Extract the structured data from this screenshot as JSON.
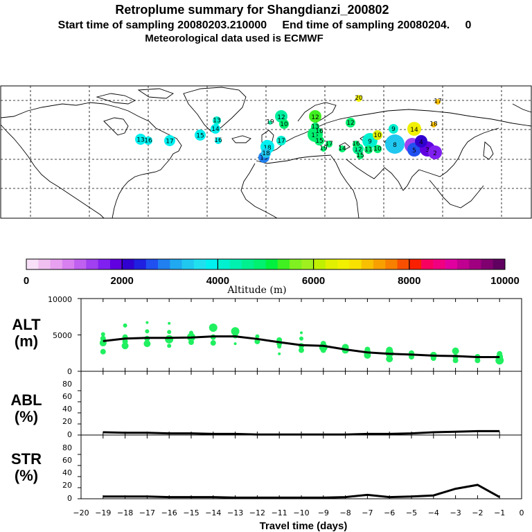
{
  "title": {
    "line1": "Retroplume summary for Shangdianzi_200802",
    "line2": "Start time of sampling 20080203.210000     End time of sampling 20080204.     0",
    "line3": "Meteorological data used is ECMWF"
  },
  "colorbar": {
    "colors": [
      "#f8e0f8",
      "#f0c0f0",
      "#e8a0f0",
      "#d880f0",
      "#c060f0",
      "#a040f0",
      "#8020f0",
      "#6000e0",
      "#3000d0",
      "#2020e0",
      "#2050f0",
      "#2080f0",
      "#20a8f0",
      "#20c8f0",
      "#20e0f0",
      "#00f0f0",
      "#00f0d0",
      "#00f0b0",
      "#00f090",
      "#00f070",
      "#00f040",
      "#40f020",
      "#80f020",
      "#a0f020",
      "#c0f000",
      "#e0f000",
      "#f0f000",
      "#f8e000",
      "#f8c000",
      "#f8a000",
      "#f88000",
      "#f85000",
      "#f82000",
      "#f80060",
      "#f00080",
      "#e000a0",
      "#c00090",
      "#a00080",
      "#800070",
      "#600060"
    ],
    "tick_labels": [
      "0",
      "2000",
      "4000",
      "6000",
      "8000",
      "10000"
    ],
    "axis_title": "Altitude (m)"
  },
  "map_labels": [
    {
      "day": "13",
      "color": "#00f0f0"
    },
    {
      "day": "16",
      "color": "#00f0f0"
    },
    {
      "day": "17",
      "color": "#00f0f0"
    },
    {
      "day": "15",
      "color": "#00f0f0"
    },
    {
      "day": "14",
      "color": "#00f0f0"
    },
    {
      "day": "16",
      "color": "#00f0f0"
    },
    {
      "day": "13",
      "color": "#00f0d0"
    },
    {
      "day": "12",
      "color": "#00f0a0"
    },
    {
      "day": "19",
      "color": "#00f0a0"
    },
    {
      "day": "10",
      "color": "#00f070"
    },
    {
      "day": "11",
      "color": "#00f070"
    },
    {
      "day": "12",
      "color": "#40f020"
    },
    {
      "day": "13",
      "color": "#00f070"
    },
    {
      "day": "15",
      "color": "#00f070"
    },
    {
      "day": "17",
      "color": "#00f070"
    },
    {
      "day": "19",
      "color": "#00f070"
    },
    {
      "day": "18",
      "color": "#00f0f0"
    },
    {
      "day": "17",
      "color": "#00f0d0"
    },
    {
      "day": "19",
      "color": "#2080f0"
    },
    {
      "day": "18",
      "color": "#20c8f0"
    },
    {
      "day": "16",
      "color": "#00f070"
    },
    {
      "day": "9",
      "color": "#00f0d0"
    },
    {
      "day": "12",
      "color": "#00f090"
    },
    {
      "day": "11",
      "color": "#00f070"
    },
    {
      "day": "10",
      "color": "#00f070"
    },
    {
      "day": "8",
      "color": "#20c8f0"
    },
    {
      "day": "6",
      "color": "#a040f0"
    },
    {
      "day": "5",
      "color": "#2050f0"
    },
    {
      "day": "3",
      "color": "#6000e0"
    },
    {
      "day": "2",
      "color": "#8020f0"
    },
    {
      "day": "4",
      "color": "#3000d0"
    },
    {
      "day": "14",
      "color": "#f0f000"
    },
    {
      "day": "9",
      "color": "#00f0d0"
    },
    {
      "day": "20",
      "color": "#f0f000"
    },
    {
      "day": "17",
      "color": "#f8c000"
    },
    {
      "day": "18",
      "color": "#f8c000"
    },
    {
      "day": "10",
      "color": "#e0f000"
    },
    {
      "day": "12",
      "color": "#00f070"
    },
    {
      "day": "14",
      "color": "#00f070"
    },
    {
      "day": "15",
      "color": "#00f070"
    },
    {
      "day": "16",
      "color": "#00f070"
    }
  ],
  "panels": {
    "alt_label": [
      "ALT",
      "(m)"
    ],
    "abl_label": [
      "ABL",
      "(%)"
    ],
    "str_label": [
      "STR",
      "(%)"
    ],
    "alt_ticks": [
      "10000",
      "5000",
      "0"
    ],
    "pct_ticks": [
      "80",
      "60",
      "40",
      "20",
      "0"
    ]
  },
  "x_axis": {
    "tick_labels": [
      "−20",
      "−19",
      "−18",
      "−17",
      "−16",
      "−15",
      "−14",
      "−13",
      "−12",
      "−11",
      "−10",
      "−9",
      "−8",
      "−7",
      "−6",
      "−5",
      "−4",
      "−3",
      "−2",
      "−1",
      "0"
    ],
    "label": "Travel time (days)"
  },
  "chart_data": [
    {
      "type": "line",
      "title": "ALT (m)",
      "x": [
        -19,
        -18,
        -17,
        -16,
        -15,
        -14,
        -13,
        -12,
        -11,
        -10,
        -9,
        -8,
        -7,
        -6,
        -5,
        -4,
        -3,
        -2,
        -1
      ],
      "values": [
        4150,
        4500,
        4600,
        4600,
        4650,
        4800,
        4800,
        4450,
        4000,
        3600,
        3500,
        3000,
        2600,
        2400,
        2300,
        2150,
        2100,
        1950,
        1950
      ],
      "ylim": [
        0,
        10000
      ],
      "xlim": [
        -20,
        0
      ],
      "scatter_points": [
        {
          "x": -19,
          "y": 2700,
          "s": 4
        },
        {
          "x": -19,
          "y": 3900,
          "s": 5
        },
        {
          "x": -19,
          "y": 4500,
          "s": 4
        },
        {
          "x": -19,
          "y": 5100,
          "s": 3
        },
        {
          "x": -18,
          "y": 3500,
          "s": 5
        },
        {
          "x": -18,
          "y": 4100,
          "s": 4
        },
        {
          "x": -18,
          "y": 4700,
          "s": 4
        },
        {
          "x": -18,
          "y": 6300,
          "s": 3
        },
        {
          "x": -17,
          "y": 3800,
          "s": 5
        },
        {
          "x": -17,
          "y": 4500,
          "s": 4
        },
        {
          "x": -17,
          "y": 5500,
          "s": 3
        },
        {
          "x": -17,
          "y": 6700,
          "s": 2
        },
        {
          "x": -16,
          "y": 3500,
          "s": 3
        },
        {
          "x": -16,
          "y": 4400,
          "s": 6
        },
        {
          "x": -16,
          "y": 5400,
          "s": 3
        },
        {
          "x": -16,
          "y": 6600,
          "s": 2
        },
        {
          "x": -15,
          "y": 4000,
          "s": 4
        },
        {
          "x": -15,
          "y": 4700,
          "s": 6
        },
        {
          "x": -15,
          "y": 5300,
          "s": 3
        },
        {
          "x": -14,
          "y": 3900,
          "s": 4
        },
        {
          "x": -14,
          "y": 4700,
          "s": 4
        },
        {
          "x": -14,
          "y": 6000,
          "s": 6
        },
        {
          "x": -13,
          "y": 3800,
          "s": 2
        },
        {
          "x": -13,
          "y": 4900,
          "s": 4
        },
        {
          "x": -13,
          "y": 5500,
          "s": 6
        },
        {
          "x": -12,
          "y": 4100,
          "s": 4
        },
        {
          "x": -12,
          "y": 4800,
          "s": 3
        },
        {
          "x": -11,
          "y": 2400,
          "s": 2
        },
        {
          "x": -11,
          "y": 3400,
          "s": 3
        },
        {
          "x": -11,
          "y": 3800,
          "s": 4
        },
        {
          "x": -11,
          "y": 4300,
          "s": 4
        },
        {
          "x": -10,
          "y": 2900,
          "s": 4
        },
        {
          "x": -10,
          "y": 3500,
          "s": 4
        },
        {
          "x": -10,
          "y": 4500,
          "s": 3
        },
        {
          "x": -10,
          "y": 5300,
          "s": 2
        },
        {
          "x": -9,
          "y": 2900,
          "s": 4
        },
        {
          "x": -9,
          "y": 3300,
          "s": 6
        },
        {
          "x": -9,
          "y": 3800,
          "s": 4
        },
        {
          "x": -8,
          "y": 2900,
          "s": 5
        },
        {
          "x": -8,
          "y": 3300,
          "s": 5
        },
        {
          "x": -7,
          "y": 2200,
          "s": 5
        },
        {
          "x": -7,
          "y": 2600,
          "s": 5
        },
        {
          "x": -7,
          "y": 3000,
          "s": 4
        },
        {
          "x": -6,
          "y": 1700,
          "s": 5
        },
        {
          "x": -6,
          "y": 2500,
          "s": 6
        },
        {
          "x": -6,
          "y": 2900,
          "s": 5
        },
        {
          "x": -5,
          "y": 2000,
          "s": 4
        },
        {
          "x": -5,
          "y": 2500,
          "s": 4
        },
        {
          "x": -4,
          "y": 1800,
          "s": 4
        },
        {
          "x": -4,
          "y": 2200,
          "s": 5
        },
        {
          "x": -3,
          "y": 1500,
          "s": 4
        },
        {
          "x": -3,
          "y": 2000,
          "s": 4
        },
        {
          "x": -3,
          "y": 2800,
          "s": 5
        },
        {
          "x": -2,
          "y": 1500,
          "s": 4
        },
        {
          "x": -2,
          "y": 2000,
          "s": 4
        },
        {
          "x": -1,
          "y": 1500,
          "s": 6
        },
        {
          "x": -1,
          "y": 2000,
          "s": 5
        },
        {
          "x": -1,
          "y": 2400,
          "s": 4
        }
      ]
    },
    {
      "type": "line",
      "title": "ABL (%)",
      "x": [
        -19,
        -18,
        -17,
        -16,
        -15,
        -14,
        -13,
        -12,
        -11,
        -10,
        -9,
        -8,
        -7,
        -6,
        -5,
        -4,
        -3,
        -2,
        -1
      ],
      "values": [
        5,
        4,
        4,
        3,
        3,
        2,
        2,
        1,
        1,
        1,
        1,
        1,
        2,
        2,
        3,
        5,
        6,
        7,
        7
      ],
      "ylim": [
        0,
        100
      ],
      "xlim": [
        -20,
        0
      ]
    },
    {
      "type": "line",
      "title": "STR (%)",
      "x": [
        -19,
        -18,
        -17,
        -16,
        -15,
        -14,
        -13,
        -12,
        -11,
        -10,
        -9,
        -8,
        -7,
        -6,
        -5,
        -4,
        -3,
        -2,
        -1
      ],
      "values": [
        4,
        4,
        4,
        3,
        3,
        3,
        2,
        2,
        2,
        2,
        2,
        3,
        7,
        3,
        4,
        6,
        18,
        25,
        3
      ],
      "ylim": [
        0,
        100
      ],
      "xlim": [
        -20,
        0
      ]
    }
  ]
}
